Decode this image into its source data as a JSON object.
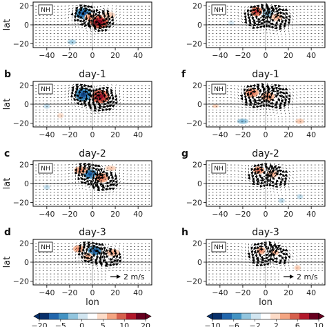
{
  "chart_data": {
    "type": "heatmap",
    "xlabel": "lon",
    "ylabel": "lat",
    "xlim": [
      -52,
      52
    ],
    "ylim": [
      -24,
      24
    ],
    "xticks": [
      -40,
      -20,
      0,
      20,
      40
    ],
    "yticks": [
      -20,
      0,
      20
    ],
    "region_label": "NH",
    "reference_vector": "2 m/s",
    "columns": [
      {
        "colorbar": {
          "ticks": [
            "-20",
            "-5",
            "0",
            "5",
            "10",
            "20"
          ],
          "colors": [
            "#08306b",
            "#2166ac",
            "#4393c3",
            "#92c5de",
            "#d1e5f0",
            "#ffffff",
            "#fddbc7",
            "#f4a582",
            "#d6604d",
            "#b2182b",
            "#67001f"
          ]
        },
        "panels": [
          {
            "letter": "",
            "title": "",
            "show_ylabel": true,
            "anomalies": [
              [
                -8,
                12,
                7,
                6,
                -0.9
              ],
              [
                6,
                3,
                8,
                7,
                0.95
              ],
              [
                -2,
                8,
                5,
                4,
                0.5
              ],
              [
                -18,
                -18,
                4,
                3,
                -0.4
              ],
              [
                14,
                10,
                6,
                4,
                0.3
              ]
            ],
            "vortices": [
              [
                -6,
                10,
                9,
                -1
              ],
              [
                6,
                6,
                9,
                1
              ]
            ]
          },
          {
            "letter": "b",
            "title": "day-1",
            "show_ylabel": true,
            "anomalies": [
              [
                -8,
                10,
                7,
                7,
                -0.95
              ],
              [
                7,
                8,
                8,
                7,
                0.9
              ],
              [
                -40,
                -2,
                3,
                3,
                -0.3
              ],
              [
                -28,
                -12,
                3,
                3,
                0.2
              ]
            ],
            "vortices": [
              [
                -8,
                10,
                9,
                -1
              ],
              [
                8,
                6,
                10,
                1
              ]
            ]
          },
          {
            "letter": "c",
            "title": "day-2",
            "show_ylabel": true,
            "anomalies": [
              [
                -2,
                10,
                6,
                5,
                -0.9
              ],
              [
                -10,
                14,
                6,
                4,
                0.5
              ],
              [
                8,
                6,
                6,
                5,
                0.6
              ],
              [
                -40,
                -4,
                3,
                3,
                -0.3
              ],
              [
                16,
                16,
                5,
                3,
                0.3
              ]
            ],
            "vortices": [
              [
                -2,
                10,
                10,
                -1
              ],
              [
                10,
                4,
                9,
                1
              ]
            ]
          },
          {
            "letter": "d",
            "title": "day-3",
            "show_ylabel": true,
            "anomalies": [
              [
                2,
                12,
                6,
                5,
                -0.9
              ],
              [
                -12,
                14,
                5,
                4,
                0.5
              ],
              [
                -4,
                6,
                4,
                4,
                0.4
              ],
              [
                18,
                10,
                6,
                4,
                0.4
              ]
            ],
            "vortices": [
              [
                0,
                10,
                10,
                -1
              ],
              [
                14,
                6,
                8,
                1
              ]
            ],
            "show_ref": true
          }
        ]
      },
      {
        "colorbar": {
          "ticks": [
            "-10",
            "-6",
            "-2",
            "2",
            "6",
            "10"
          ],
          "colors": [
            "#08306b",
            "#2166ac",
            "#4393c3",
            "#92c5de",
            "#d1e5f0",
            "#ffffff",
            "#fddbc7",
            "#f4a582",
            "#d6604d",
            "#b2182b",
            "#67001f"
          ]
        },
        "panels": [
          {
            "letter": "",
            "title": "",
            "show_ylabel": false,
            "anomalies": [
              [
                -8,
                14,
                5,
                5,
                0.8
              ],
              [
                2,
                12,
                5,
                4,
                -0.5
              ],
              [
                10,
                8,
                5,
                4,
                0.4
              ],
              [
                -30,
                2,
                3,
                3,
                -0.2
              ]
            ],
            "vortices": [
              [
                -6,
                10,
                10,
                1
              ],
              [
                8,
                6,
                10,
                -1
              ]
            ]
          },
          {
            "letter": "f",
            "title": "day-1",
            "show_ylabel": false,
            "anomalies": [
              [
                -12,
                12,
                6,
                5,
                0.6
              ],
              [
                2,
                8,
                6,
                5,
                0.5
              ],
              [
                -20,
                -18,
                5,
                3,
                -0.5
              ],
              [
                -44,
                -2,
                3,
                2,
                0.3
              ],
              [
                30,
                -18,
                4,
                3,
                0.3
              ]
            ],
            "vortices": [
              [
                -8,
                10,
                10,
                1
              ],
              [
                8,
                6,
                10,
                -1
              ]
            ]
          },
          {
            "letter": "g",
            "title": "day-2",
            "show_ylabel": false,
            "anomalies": [
              [
                -6,
                14,
                5,
                4,
                0.6
              ],
              [
                6,
                10,
                5,
                4,
                0.4
              ],
              [
                14,
                -18,
                3,
                3,
                -0.3
              ],
              [
                30,
                -14,
                3,
                3,
                -0.3
              ]
            ],
            "vortices": [
              [
                -2,
                10,
                10,
                1
              ],
              [
                8,
                6,
                9,
                -1
              ]
            ]
          },
          {
            "letter": "h",
            "title": "day-3",
            "show_ylabel": false,
            "anomalies": [
              [
                -4,
                12,
                4,
                4,
                0.5
              ],
              [
                8,
                10,
                4,
                3,
                0.4
              ],
              [
                28,
                -6,
                3,
                3,
                0.3
              ]
            ],
            "vortices": [
              [
                -2,
                10,
                10,
                1
              ],
              [
                10,
                6,
                8,
                -1
              ]
            ],
            "show_ref": true
          }
        ]
      }
    ]
  }
}
